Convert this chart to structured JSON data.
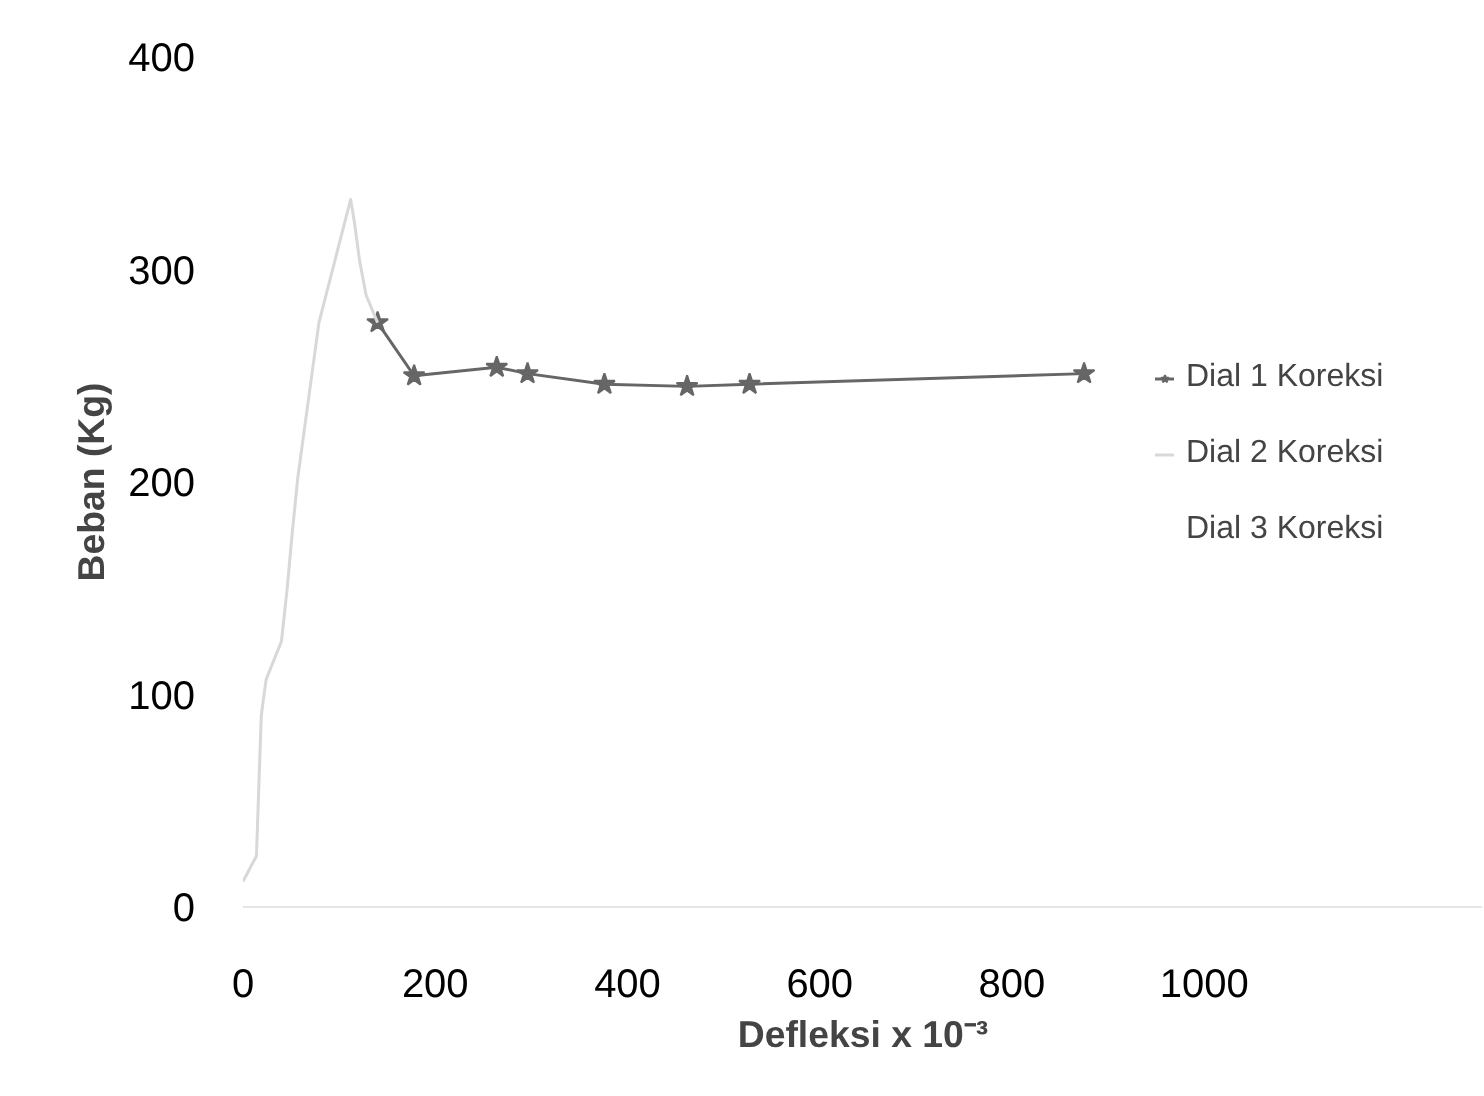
{
  "chart_data": {
    "type": "line",
    "xlabel": "Defleksi x 10⁻³",
    "ylabel": "Beban (Kg)",
    "xlim": [
      0,
      1290
    ],
    "ylim": [
      0,
      400
    ],
    "xticks": [
      0,
      200,
      400,
      600,
      800,
      1000
    ],
    "yticks": [
      0,
      100,
      200,
      300,
      400
    ],
    "grid": false,
    "legend": "right",
    "series": [
      {
        "name": "Dial 1 Koreksi",
        "color": "#666666",
        "marker": "star",
        "x": [
          140,
          178,
          264,
          296,
          376,
          462,
          527,
          875
        ],
        "values": [
          275,
          250,
          254,
          251,
          246,
          245,
          246,
          251
        ]
      },
      {
        "name": "Dial 2 Koreksi",
        "color": "#d8d8d8",
        "marker": "none",
        "x": [
          0,
          14,
          19,
          24,
          40,
          46,
          51,
          57,
          79,
          112,
          116,
          121,
          128,
          140
        ],
        "values": [
          12,
          24,
          90,
          107,
          125,
          150,
          175,
          202,
          275,
          333,
          322,
          305,
          288,
          275
        ]
      },
      {
        "name": "Dial 3 Koreksi"
      }
    ]
  }
}
